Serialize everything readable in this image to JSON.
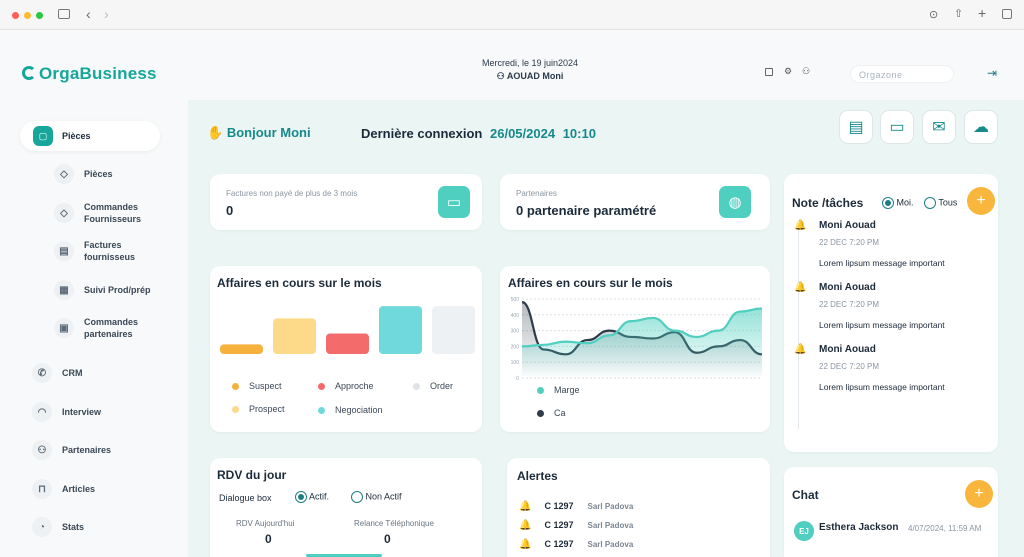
{
  "app": {
    "logo_text": "OrgaBusiness"
  },
  "header": {
    "date": "Mercredi, le 19 juin2024",
    "user": "AOUAD Moni",
    "search_placeholder": "Orgazone"
  },
  "sidebar": {
    "items": [
      {
        "label": "Pièces",
        "icon": "chat-icon"
      },
      {
        "label": "Pièces",
        "icon": "cube-icon"
      },
      {
        "label": "Commandes\nFournisseurs",
        "icon": "cube-icon"
      },
      {
        "label": "Factures\nfournisseus",
        "icon": "invoice-icon"
      },
      {
        "label": "Suivi Prod/prép",
        "icon": "calendar-icon"
      },
      {
        "label": "Commandes\npartenaires",
        "icon": "box-icon"
      },
      {
        "label": "CRM",
        "icon": "phone-icon"
      },
      {
        "label": "Interview",
        "icon": "headset-icon"
      },
      {
        "label": "Partenaires",
        "icon": "users-icon"
      },
      {
        "label": "Articles",
        "icon": "bag-icon"
      },
      {
        "label": "Stats",
        "icon": "pie-icon"
      }
    ]
  },
  "greeting": {
    "text": "Bonjour Moni",
    "last_label": "Dernière connexion",
    "last_date": "26/05/2024",
    "last_time": "10:10"
  },
  "kpis": [
    {
      "label": "Factures non payé de plus de 3 mois",
      "value": "0"
    },
    {
      "label": "Partenaires",
      "value": "0 partenaire paramétré"
    }
  ],
  "bar_card": {
    "title": "Affaires en cours sur le mois",
    "legend": [
      {
        "name": "Suspect",
        "color": "#f6b13d"
      },
      {
        "name": "Approche",
        "color": "#f36b6b"
      },
      {
        "name": "Order",
        "color": "#dfe3e7"
      },
      {
        "name": "Prospect",
        "color": "#fdd98a"
      },
      {
        "name": "Negociation",
        "color": "#6fd9dc"
      }
    ]
  },
  "chart_data": [
    {
      "type": "bar",
      "title": "Affaires en cours sur le mois",
      "categories": [
        "Suspect",
        "Prospect",
        "Approche",
        "Negociation",
        "Order"
      ],
      "values": [
        7,
        26,
        15,
        35,
        35
      ],
      "colors": [
        "#f6b13d",
        "#fdd98a",
        "#f36b6b",
        "#6fd9dc",
        "#eef1f4"
      ]
    },
    {
      "type": "area",
      "title": "Affaires en cours sur le mois",
      "yticks": [
        "0",
        "100",
        "200",
        "300",
        "400",
        "500"
      ],
      "ylim": [
        0,
        500
      ],
      "grid": true,
      "series": [
        {
          "name": "Marge",
          "color": "#4fcfc0",
          "values": [
            200,
            210,
            230,
            220,
            270,
            360,
            380,
            300,
            260,
            300,
            420,
            440
          ]
        },
        {
          "name": "Ca",
          "color": "#2d3b4a",
          "values": [
            480,
            180,
            150,
            240,
            300,
            260,
            250,
            290,
            160,
            200,
            240,
            150
          ]
        }
      ]
    }
  ],
  "notes": {
    "title": "Note /tâches",
    "opt_me": "Moi.",
    "opt_all": "Tous",
    "items": [
      {
        "name": "Moni Aouad",
        "date": "22 DEC 7:20 PM",
        "msg": "Lorem lipsum message important"
      },
      {
        "name": "Moni Aouad",
        "date": "22 DEC 7:20 PM",
        "msg": "Lorem lipsum message important"
      },
      {
        "name": "Moni Aouad",
        "date": "22 DEC 7:20 PM",
        "msg": "Lorem lipsum message important"
      }
    ]
  },
  "rdv": {
    "title": "RDV du jour",
    "dialog_label": "Dialogue box",
    "opt_active": "Actif.",
    "opt_inactive": "Non Actif",
    "col1_label": "RDV Aujourd'hui",
    "col1_value": "0",
    "col2_label": "Relance Téléphonique",
    "col2_value": "0"
  },
  "alerts": {
    "title": "Alertes",
    "items": [
      {
        "code": "C 1297",
        "name": "Sarl Padova"
      },
      {
        "code": "C 1297",
        "name": "Sarl Padova"
      },
      {
        "code": "C 1297",
        "name": "Sarl Padova"
      }
    ]
  },
  "chat": {
    "title": "Chat",
    "initials": "EJ",
    "name": "Esthera Jackson",
    "time": "4/07/2024, 11:59 AM"
  },
  "colors": {
    "accent": "#16a69a",
    "teal": "#4fcfc0",
    "orange": "#f8b73c"
  }
}
